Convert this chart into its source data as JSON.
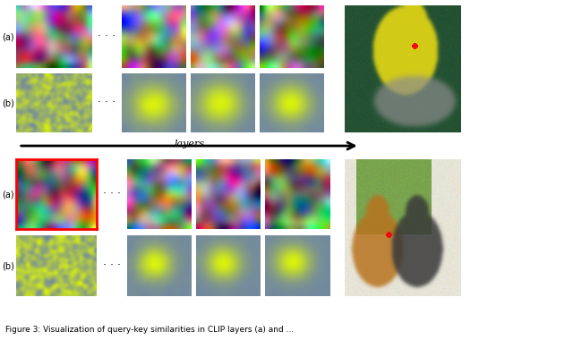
{
  "caption": "Figure 3: Visualization of query-key similarities in CLIP layers (a) and ...",
  "bg_color": "#ffffff",
  "arrow_label": "layers",
  "bird_photo_bg": [
    0.15,
    0.35,
    0.25
  ],
  "cat_photo_bg": [
    0.85,
    0.85,
    0.8
  ],
  "heatmap_bg": [
    0.45,
    0.55,
    0.65
  ],
  "heatmap_fg": [
    0.85,
    0.95,
    0.05
  ]
}
